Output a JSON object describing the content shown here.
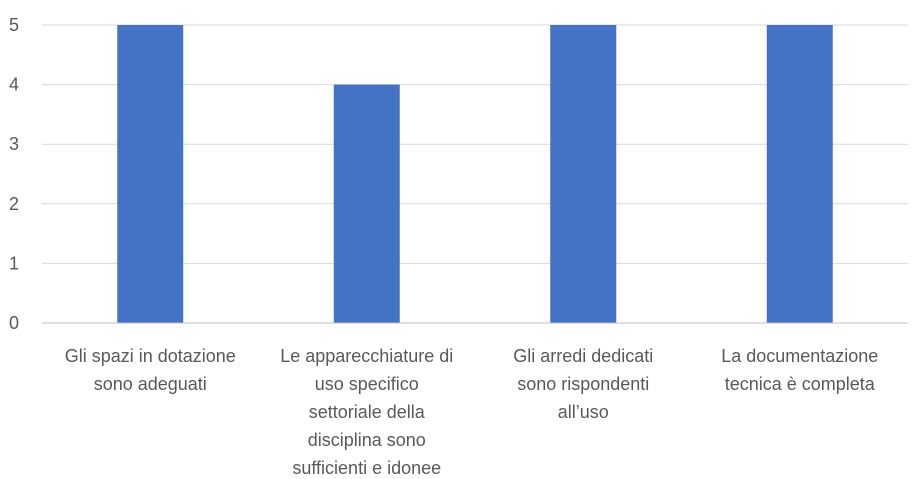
{
  "chart_data": {
    "type": "bar",
    "categories": [
      [
        "Gli spazi in dotazione",
        "sono adeguati"
      ],
      [
        "Le apparecchiature di",
        "uso specifico",
        "settoriale della",
        "disciplina sono",
        "sufficienti e idonee"
      ],
      [
        "Gli arredi dedicati",
        "sono rispondenti",
        "all’uso"
      ],
      [
        "La documentazione",
        "tecnica è completa"
      ]
    ],
    "values": [
      5,
      4,
      5,
      5
    ],
    "yticks": [
      "0",
      "1",
      "2",
      "3",
      "4",
      "5"
    ],
    "ylim": [
      0,
      5
    ],
    "grid": true,
    "bar_color": "#4472c4",
    "title": "",
    "xlabel": "",
    "ylabel": ""
  }
}
